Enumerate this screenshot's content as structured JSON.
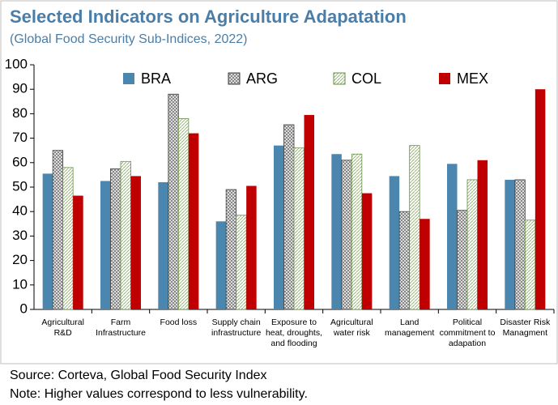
{
  "chart_data": {
    "type": "bar",
    "title": "Selected Indicators on Agriculture Adapatation",
    "subtitle": "(Global Food Security Sub-Indices, 2022)",
    "categories": [
      "Agricultural R&D",
      "Farm Infrastructure",
      "Food loss",
      "Supply chain infrastructure",
      "Exposure to heat, droughts, and flooding",
      "Agricultural water risk",
      "Land management",
      "Political commitment to adapation",
      "Disaster Risk Managment"
    ],
    "series": [
      {
        "name": "BRA",
        "color": "#4a86ad",
        "pattern": "solid",
        "values": [
          55.5,
          52.5,
          52,
          36,
          67,
          63.5,
          54.5,
          59.5,
          53
        ]
      },
      {
        "name": "ARG",
        "color": "#7f7f7f",
        "pattern": "crosshatch",
        "values": [
          65,
          57.5,
          88,
          49,
          75.5,
          61,
          40,
          40.5,
          53
        ]
      },
      {
        "name": "COL",
        "color": "#8fbf5f",
        "pattern": "diagonal",
        "values": [
          58,
          60.5,
          78,
          38.5,
          66,
          63.5,
          67,
          53,
          36.5
        ]
      },
      {
        "name": "MEX",
        "color": "#c00000",
        "pattern": "solid",
        "values": [
          46.5,
          54.5,
          72,
          50.5,
          79.5,
          47.5,
          37,
          61,
          90
        ]
      }
    ],
    "ylim": [
      0,
      100
    ],
    "yticks": [
      0,
      10,
      20,
      30,
      40,
      50,
      60,
      70,
      80,
      90,
      100
    ],
    "legend": "top",
    "source": "Source: Corteva, Global Food Security Index",
    "note": "Note: Higher values correspond to less vulnerability."
  }
}
